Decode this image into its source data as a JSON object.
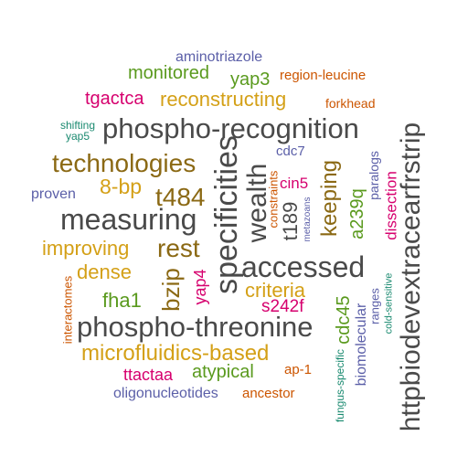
{
  "colors": {
    "gray": "#4a4a4a",
    "brown": "#8b6914",
    "gold": "#d4a017",
    "green": "#5a9a1e",
    "magenta": "#d6006e",
    "orange": "#cc5500",
    "purple": "#5b5fa8",
    "teal": "#1a8a70"
  },
  "words": [
    {
      "text": "aminotriazole"
    },
    {
      "text": "monitored"
    },
    {
      "text": "yap3"
    },
    {
      "text": "region-leucine"
    },
    {
      "text": "tgactca"
    },
    {
      "text": "reconstructing"
    },
    {
      "text": "forkhead"
    },
    {
      "text": "shifting"
    },
    {
      "text": "yap5"
    },
    {
      "text": "phospho-recognition"
    },
    {
      "text": "httpbiodevextracearfrstrip"
    },
    {
      "text": "cdc7"
    },
    {
      "text": "technologies"
    },
    {
      "text": "paralogs"
    },
    {
      "text": "8-bp"
    },
    {
      "text": "constraints"
    },
    {
      "text": "proven"
    },
    {
      "text": "t484"
    },
    {
      "text": "specificities"
    },
    {
      "text": "wealth"
    },
    {
      "text": "cin5"
    },
    {
      "text": "keeping"
    },
    {
      "text": "dissection"
    },
    {
      "text": "metazoans"
    },
    {
      "text": "measuring"
    },
    {
      "text": "t189"
    },
    {
      "text": "a239q"
    },
    {
      "text": "improving"
    },
    {
      "text": "rest"
    },
    {
      "text": "accessed"
    },
    {
      "text": "dense"
    },
    {
      "text": "interactomes"
    },
    {
      "text": "bzip"
    },
    {
      "text": "yap4"
    },
    {
      "text": "criteria"
    },
    {
      "text": "ranges"
    },
    {
      "text": "cold-sensitive"
    },
    {
      "text": "fha1"
    },
    {
      "text": "s242f"
    },
    {
      "text": "cdc45"
    },
    {
      "text": "phospho-threonine"
    },
    {
      "text": "biomolecular"
    },
    {
      "text": "microfluidics-based"
    },
    {
      "text": "atypical"
    },
    {
      "text": "ap-1"
    },
    {
      "text": "ttactaa"
    },
    {
      "text": "fungus-specific"
    },
    {
      "text": "oligonucleotides"
    },
    {
      "text": "ancestor"
    }
  ]
}
